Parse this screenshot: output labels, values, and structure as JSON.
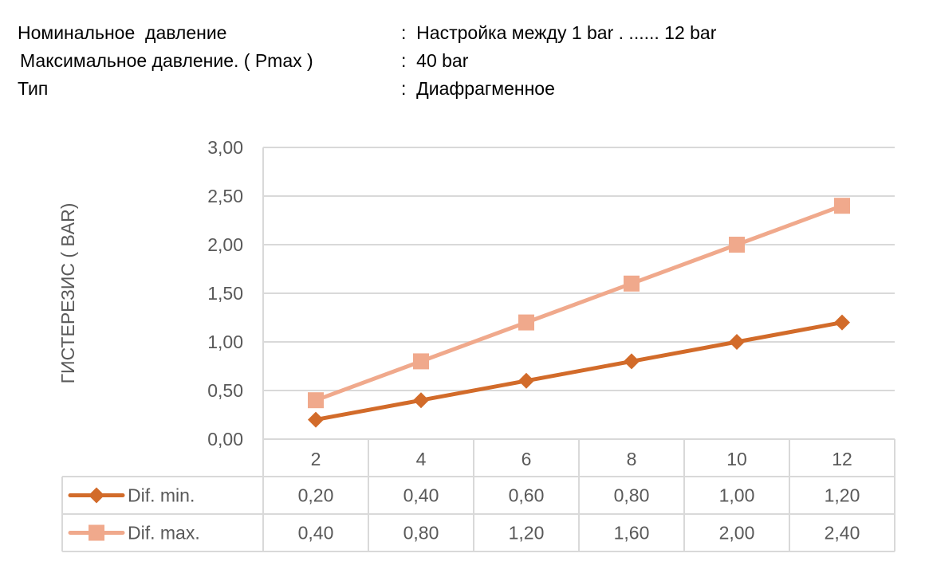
{
  "specs": [
    {
      "label": "Номинальное  давление",
      "value": ":  Настройка между 1 bar . ...... 12 bar"
    },
    {
      "label": "Максимальное давление. ( Pmax )",
      "value": ":  40 bar"
    },
    {
      "label": "Тип",
      "value": ":  Диафрагменное"
    }
  ],
  "chart_data": {
    "type": "line",
    "title": "",
    "xlabel": "",
    "ylabel": "ГИСТЕРЕЗИС  ( BAR)",
    "ylim": [
      0,
      3
    ],
    "yticks": [
      "0,00",
      "0,50",
      "1,00",
      "1,50",
      "2,00",
      "2,50",
      "3,00"
    ],
    "grid": true,
    "legend": "data-table",
    "categories": [
      "2",
      "4",
      "6",
      "8",
      "10",
      "12"
    ],
    "series": [
      {
        "name": "Dif.  min.",
        "values": [
          0.2,
          0.4,
          0.6,
          0.8,
          1.0,
          1.2
        ],
        "labels": [
          "0,20",
          "0,40",
          "0,60",
          "0,80",
          "1,00",
          "1,20"
        ],
        "color": "#D26B2A",
        "marker": "diamond"
      },
      {
        "name": "Dif.  max.",
        "values": [
          0.4,
          0.8,
          1.2,
          1.6,
          2.0,
          2.4
        ],
        "labels": [
          "0,40",
          "0,80",
          "1,20",
          "1,60",
          "2,00",
          "2,40"
        ],
        "color": "#F0A98C",
        "marker": "square"
      }
    ]
  }
}
